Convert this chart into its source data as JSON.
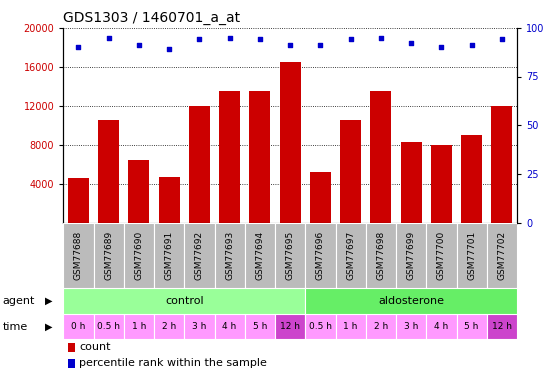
{
  "title": "GDS1303 / 1460701_a_at",
  "samples": [
    "GSM77688",
    "GSM77689",
    "GSM77690",
    "GSM77691",
    "GSM77692",
    "GSM77693",
    "GSM77694",
    "GSM77695",
    "GSM77696",
    "GSM77697",
    "GSM77698",
    "GSM77699",
    "GSM77700",
    "GSM77701",
    "GSM77702"
  ],
  "counts": [
    4600,
    10500,
    6400,
    4700,
    12000,
    13500,
    13500,
    16500,
    5200,
    10500,
    13500,
    8300,
    8000,
    9000,
    12000
  ],
  "percentiles": [
    90,
    95,
    91,
    89,
    94,
    95,
    94,
    91,
    91,
    94,
    95,
    92,
    90,
    91,
    94
  ],
  "time_labels": [
    "0 h",
    "0.5 h",
    "1 h",
    "2 h",
    "3 h",
    "4 h",
    "5 h",
    "12 h",
    "0.5 h",
    "1 h",
    "2 h",
    "3 h",
    "4 h",
    "5 h",
    "12 h"
  ],
  "agent_control_count": 8,
  "agent_aldosterone_count": 7,
  "bar_color": "#cc0000",
  "dot_color": "#0000cc",
  "control_color": "#99ff99",
  "aldosterone_color": "#66ee66",
  "time_color_light": "#ff99ff",
  "time_color_dark": "#cc44cc",
  "bg_color": "#bbbbbb",
  "ylim_left": [
    0,
    20000
  ],
  "ylim_right": [
    0,
    100
  ],
  "yticks_left": [
    4000,
    8000,
    12000,
    16000,
    20000
  ],
  "yticks_right": [
    0,
    25,
    50,
    75,
    100
  ],
  "title_fontsize": 10,
  "tick_fontsize": 7,
  "label_fontsize": 8,
  "sample_fontsize": 6.5,
  "time_fontsize": 6.5
}
